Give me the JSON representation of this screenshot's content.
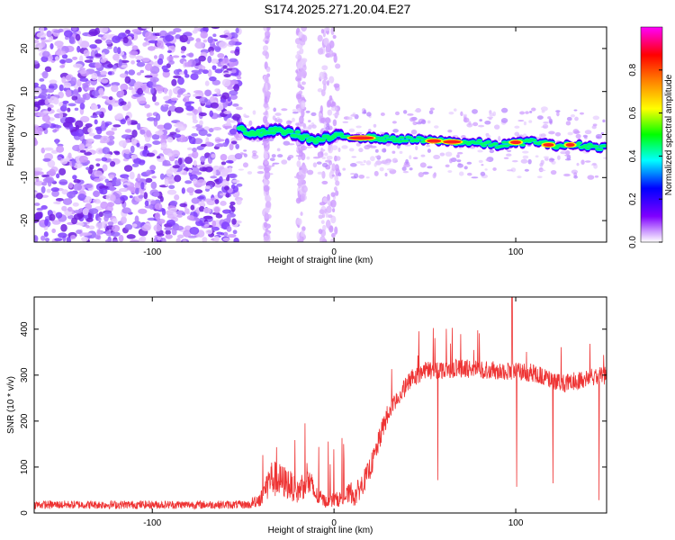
{
  "title": "S174.2025.271.20.04.E27",
  "chart_data": [
    {
      "type": "heatmap",
      "xlabel": "Height of straight line (km)",
      "ylabel": "Frequency (Hz)",
      "xlim": [
        -165,
        150
      ],
      "ylim": [
        -25,
        25
      ],
      "xticks": [
        -100,
        0,
        100
      ],
      "xtick_labels": [
        "-100",
        "0",
        "100"
      ],
      "yticks": [
        -20,
        -10,
        0,
        10,
        20
      ],
      "ytick_labels": [
        "-20",
        "-10",
        "0",
        "10",
        "20"
      ],
      "signal_track": [
        {
          "x": -52,
          "f": 1.5
        },
        {
          "x": -45,
          "f": 0
        },
        {
          "x": -38,
          "f": 0.5
        },
        {
          "x": -30,
          "f": 1.0
        },
        {
          "x": -20,
          "f": 0
        },
        {
          "x": -10,
          "f": -1.5
        },
        {
          "x": 0,
          "f": -0.5
        },
        {
          "x": 10,
          "f": -0.5
        },
        {
          "x": 30,
          "f": -1.0
        },
        {
          "x": 60,
          "f": -1.5
        },
        {
          "x": 80,
          "f": -2.0
        },
        {
          "x": 90,
          "f": -2.5
        },
        {
          "x": 100,
          "f": -2.0
        },
        {
          "x": 110,
          "f": -1.5
        },
        {
          "x": 120,
          "f": -2.5
        },
        {
          "x": 135,
          "f": -2.5
        },
        {
          "x": 150,
          "f": -3.0
        }
      ],
      "hot_spots": [
        {
          "x": 15,
          "f": -0.8,
          "w": 14
        },
        {
          "x": 55,
          "f": -1.5,
          "w": 8
        },
        {
          "x": 65,
          "f": -1.7,
          "w": 10
        },
        {
          "x": 100,
          "f": -1.8,
          "w": 6
        },
        {
          "x": 118,
          "f": -2.4,
          "w": 6
        },
        {
          "x": 130,
          "f": -2.4,
          "w": 5
        }
      ],
      "colorbar": {
        "label": "Normalized spectral amplitude",
        "range": [
          0,
          1
        ],
        "ticks": [
          0.0,
          0.2,
          0.4,
          0.6,
          0.8
        ],
        "tick_labels": [
          "0.0",
          "0.2",
          "0.4",
          "0.6",
          "0.8"
        ],
        "colors": [
          "#ffffff",
          "#cc99ff",
          "#7f00ff",
          "#0000ff",
          "#00ffff",
          "#00ff00",
          "#ffff00",
          "#ff8000",
          "#ff0000",
          "#ff00ff"
        ]
      }
    },
    {
      "type": "line",
      "xlabel": "Height of straight line (km)",
      "ylabel": "SNR (10 * v/v)",
      "xlim": [
        -165,
        150
      ],
      "ylim": [
        0,
        470
      ],
      "xticks": [
        -100,
        0,
        100
      ],
      "xtick_labels": [
        "-100",
        "0",
        "100"
      ],
      "yticks": [
        0,
        100,
        200,
        300,
        400
      ],
      "ytick_labels": [
        "0",
        "100",
        "200",
        "300",
        "400"
      ],
      "color": "#ee3333",
      "series_profile": [
        {
          "x": -165,
          "y": 18
        },
        {
          "x": -45,
          "y": 18
        },
        {
          "x": -40,
          "y": 25
        },
        {
          "x": -38,
          "y": 40
        },
        {
          "x": -35,
          "y": 60
        },
        {
          "x": -30,
          "y": 55
        },
        {
          "x": -25,
          "y": 50
        },
        {
          "x": -20,
          "y": 35
        },
        {
          "x": -15,
          "y": 60
        },
        {
          "x": -10,
          "y": 30
        },
        {
          "x": -5,
          "y": 20
        },
        {
          "x": 5,
          "y": 25
        },
        {
          "x": 12,
          "y": 40
        },
        {
          "x": 18,
          "y": 80
        },
        {
          "x": 22,
          "y": 120
        },
        {
          "x": 28,
          "y": 200
        },
        {
          "x": 35,
          "y": 250
        },
        {
          "x": 42,
          "y": 290
        },
        {
          "x": 50,
          "y": 310
        },
        {
          "x": 70,
          "y": 315
        },
        {
          "x": 90,
          "y": 310
        },
        {
          "x": 110,
          "y": 305
        },
        {
          "x": 125,
          "y": 280
        },
        {
          "x": 135,
          "y": 290
        },
        {
          "x": 150,
          "y": 300
        }
      ]
    }
  ]
}
